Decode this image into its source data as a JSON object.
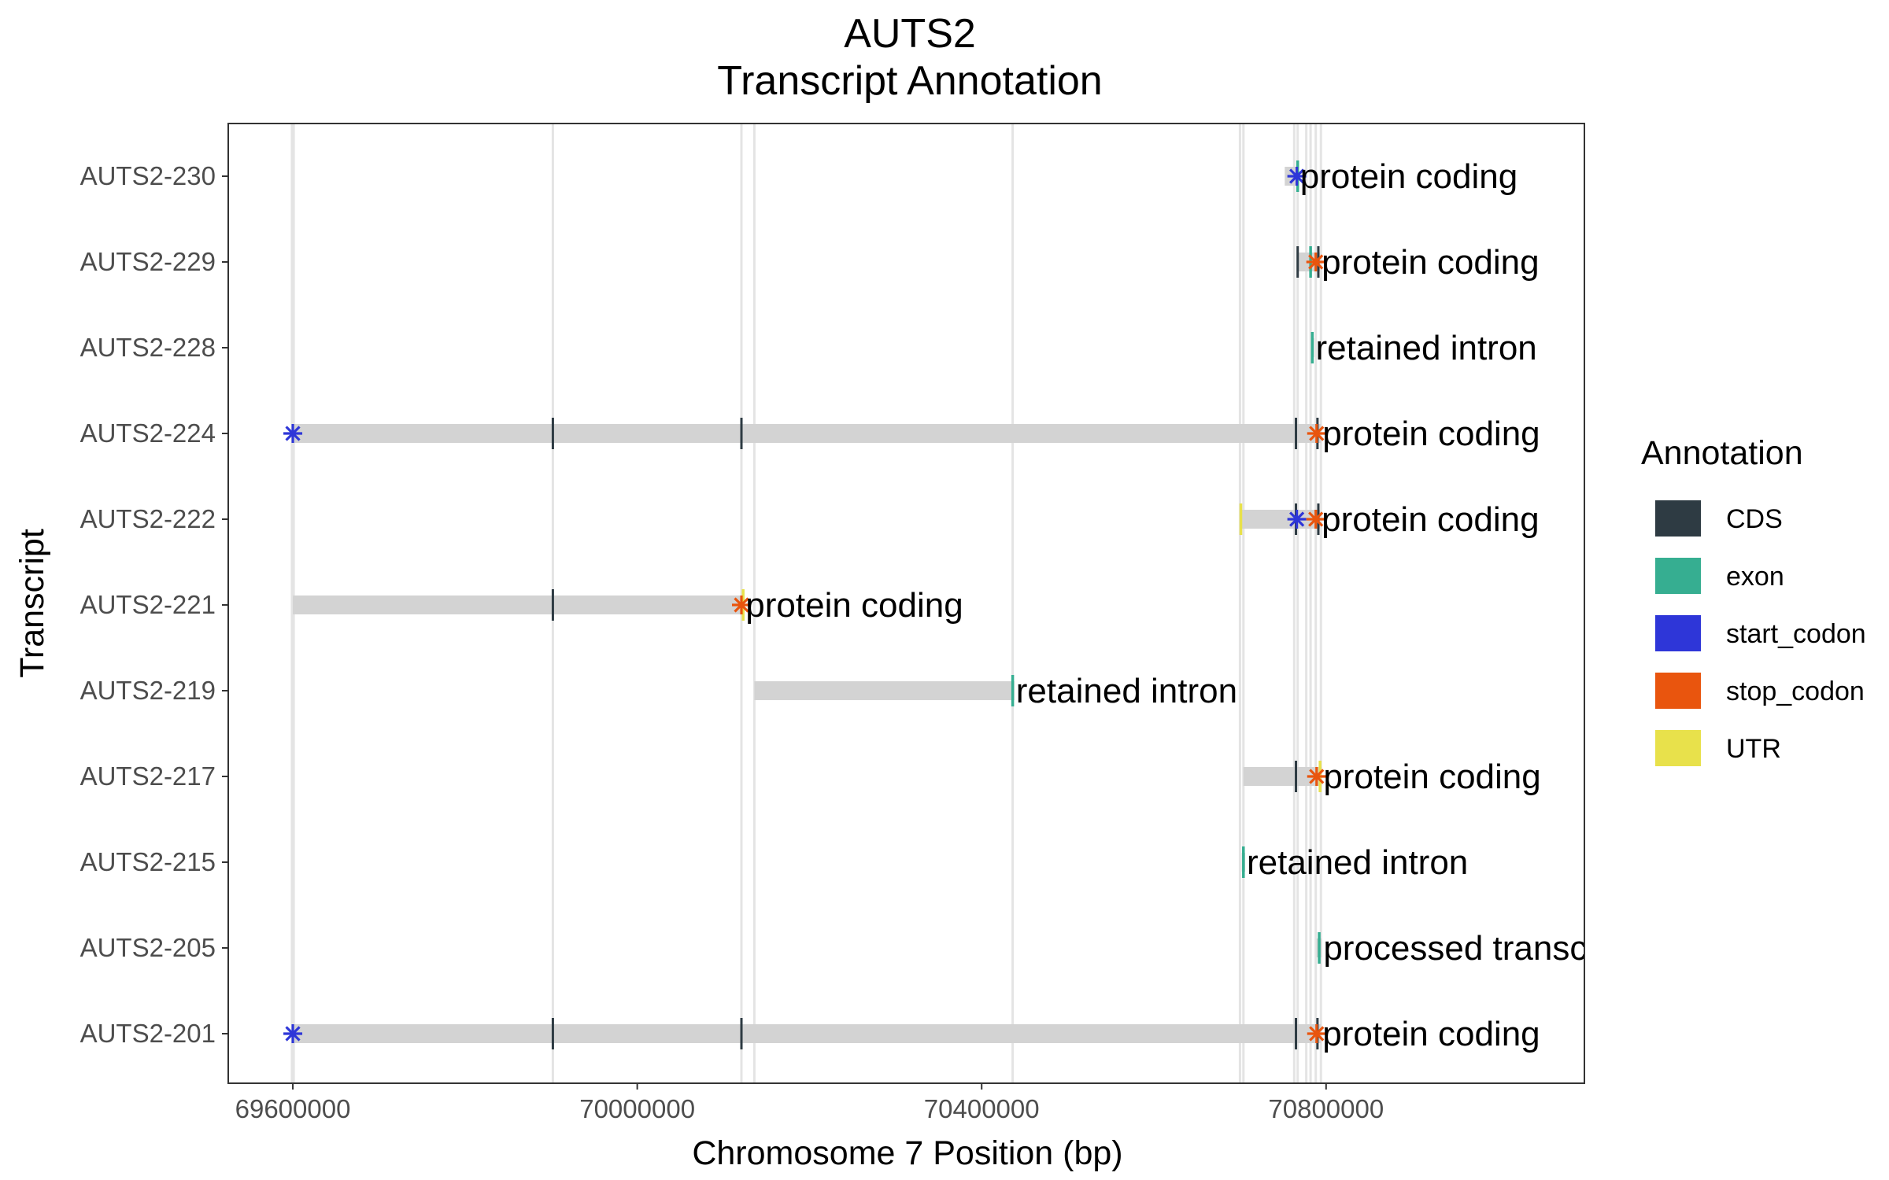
{
  "chart_data": {
    "type": "gene-track",
    "title": "AUTS2",
    "subtitle": "Transcript Annotation",
    "xlabel": "Chromosome 7 Position (bp)",
    "ylabel": "Transcript",
    "xlim": [
      69525000,
      71100000
    ],
    "x_ticks": [
      69600000,
      70000000,
      70400000,
      70800000
    ],
    "x_tick_labels": [
      "69600000",
      "70000000",
      "70400000",
      "70800000"
    ],
    "grid": "vertical lines at exon positions",
    "legend": {
      "title": "Annotation",
      "position": "right",
      "items": [
        {
          "label": "CDS",
          "color": "#2e3b43"
        },
        {
          "label": "exon",
          "color": "#36ae91"
        },
        {
          "label": "start_codon",
          "color": "#2e36d8"
        },
        {
          "label": "stop_codon",
          "color": "#e9550e"
        },
        {
          "label": "UTR",
          "color": "#e8e14b"
        }
      ]
    },
    "exon_positions": [
      69599000,
      69601000,
      69902000,
      70121000,
      70136000,
      70436000,
      70700000,
      70704000,
      70763000,
      70767000,
      70777000,
      70782000,
      70788000,
      70794000
    ],
    "transcripts": [
      {
        "name": "AUTS2-230",
        "start": 70752000,
        "end": 70768000,
        "biotype": "protein coding",
        "features": [
          {
            "type": "exon",
            "pos": 70767000
          }
        ],
        "start_codon": 70766000,
        "stop_codon": null
      },
      {
        "name": "AUTS2-229",
        "start": 70767000,
        "end": 70793000,
        "biotype": "protein coding",
        "features": [
          {
            "type": "CDS",
            "pos": 70767000
          },
          {
            "type": "exon",
            "pos": 70782000
          },
          {
            "type": "CDS",
            "pos": 70791000
          }
        ],
        "start_codon": null,
        "stop_codon": 70788000
      },
      {
        "name": "AUTS2-228",
        "start": 70783000,
        "end": 70786000,
        "biotype": "retained intron",
        "features": [
          {
            "type": "exon",
            "pos": 70784000
          }
        ],
        "start_codon": null,
        "stop_codon": null
      },
      {
        "name": "AUTS2-224",
        "start": 69600000,
        "end": 70794000,
        "biotype": "protein coding",
        "features": [
          {
            "type": "CDS",
            "pos": 69902000
          },
          {
            "type": "CDS",
            "pos": 70121000
          },
          {
            "type": "CDS",
            "pos": 70765000
          },
          {
            "type": "CDS",
            "pos": 70790000
          }
        ],
        "start_codon": 69600000,
        "stop_codon": 70789000
      },
      {
        "name": "AUTS2-222",
        "start": 70701000,
        "end": 70793000,
        "biotype": "protein coding",
        "features": [
          {
            "type": "UTR",
            "pos": 70701000
          },
          {
            "type": "CDS",
            "pos": 70765000
          },
          {
            "type": "CDS",
            "pos": 70791000
          }
        ],
        "start_codon": 70766000,
        "stop_codon": 70788000
      },
      {
        "name": "AUTS2-221",
        "start": 69600000,
        "end": 70124000,
        "biotype": "protein coding",
        "features": [
          {
            "type": "CDS",
            "pos": 69902000
          },
          {
            "type": "UTR",
            "pos": 70123000
          }
        ],
        "start_codon": null,
        "stop_codon": 70121000
      },
      {
        "name": "AUTS2-219",
        "start": 70136000,
        "end": 70438000,
        "biotype": "retained intron",
        "features": [
          {
            "type": "exon",
            "pos": 70436000
          }
        ],
        "start_codon": null,
        "stop_codon": null
      },
      {
        "name": "AUTS2-217",
        "start": 70704000,
        "end": 70795000,
        "biotype": "protein coding",
        "features": [
          {
            "type": "CDS",
            "pos": 70765000
          },
          {
            "type": "UTR",
            "pos": 70793000
          }
        ],
        "start_codon": null,
        "stop_codon": 70789000
      },
      {
        "name": "AUTS2-215",
        "start": 70702000,
        "end": 70706000,
        "biotype": "retained intron",
        "features": [
          {
            "type": "exon",
            "pos": 70704000
          }
        ],
        "start_codon": null,
        "stop_codon": null
      },
      {
        "name": "AUTS2-205",
        "start": 70789000,
        "end": 70795000,
        "biotype": "processed transcript",
        "features": [
          {
            "type": "exon",
            "pos": 70792000
          }
        ],
        "start_codon": null,
        "stop_codon": null
      },
      {
        "name": "AUTS2-201",
        "start": 69600000,
        "end": 70794000,
        "biotype": "protein coding",
        "features": [
          {
            "type": "CDS",
            "pos": 69902000
          },
          {
            "type": "CDS",
            "pos": 70121000
          },
          {
            "type": "CDS",
            "pos": 70765000
          },
          {
            "type": "CDS",
            "pos": 70790000
          }
        ],
        "start_codon": 69600000,
        "stop_codon": 70789000
      }
    ]
  }
}
